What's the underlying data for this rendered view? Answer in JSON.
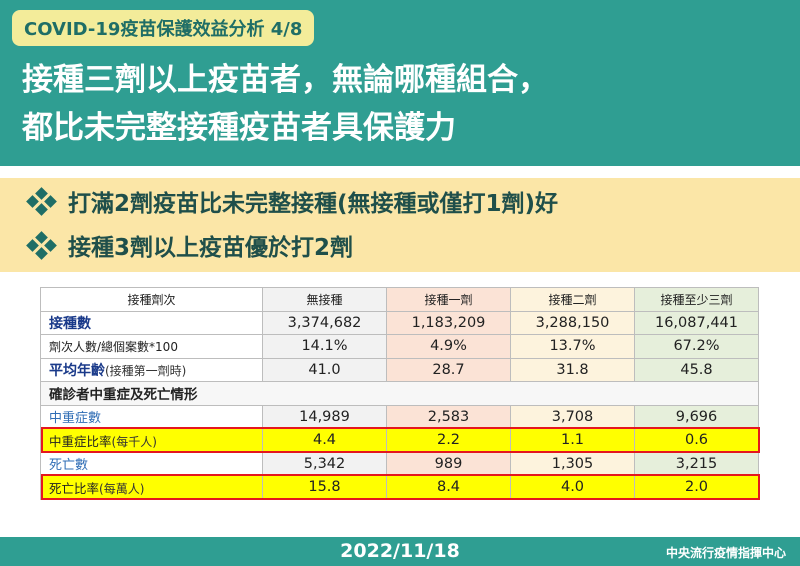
{
  "header": {
    "tag": "COVID-19疫苗保護效益分析 4/8",
    "headline_line1": "接種三劑以上疫苗者，無論哪種組合，",
    "headline_line2": "都比未完整接種疫苗者具保護力"
  },
  "key_points": [
    {
      "text": "打滿2劑疫苗比未完整接種(無接種或僅打1劑)好",
      "icon": "diamond-cluster-icon"
    },
    {
      "text": "接種3劑以上疫苗優於打2劑",
      "icon": "diamond-cluster-icon"
    }
  ],
  "table": {
    "columns": [
      "接種劑次",
      "無接種",
      "接種一劑",
      "接種二劑",
      "接種至少三劑"
    ],
    "rows": {
      "vaccinated_count": {
        "label": "接種數",
        "values": [
          "3,374,682",
          "1,183,209",
          "3,288,150",
          "16,087,441"
        ]
      },
      "case_ratio": {
        "label": "劑次人數/總個案數*100",
        "values": [
          "14.1%",
          "4.9%",
          "13.7%",
          "67.2%"
        ]
      },
      "avg_age": {
        "label": "平均年齡",
        "label_note": "(接種第一劑時)",
        "values": [
          "41.0",
          "28.7",
          "31.8",
          "45.8"
        ]
      },
      "section": {
        "label": "確診者中重症及死亡情形"
      },
      "severe_count": {
        "label": "中重症數",
        "values": [
          "14,989",
          "2,583",
          "3,708",
          "9,696"
        ]
      },
      "severe_rate": {
        "label": "中重症比率",
        "label_note": "(每千人)",
        "values": [
          "4.4",
          "2.2",
          "1.1",
          "0.6"
        ]
      },
      "death_count": {
        "label": "死亡數",
        "values": [
          "5,342",
          "989",
          "1,305",
          "3,215"
        ]
      },
      "death_rate": {
        "label": "死亡比率",
        "label_note": "(每萬人)",
        "values": [
          "15.8",
          "8.4",
          "4.0",
          "2.0"
        ]
      }
    }
  },
  "footer": {
    "date": "2022/11/18",
    "org": "中央流行疫情指揮中心"
  },
  "colors": {
    "teal": "#2f9e92",
    "tag_bg": "#f3ec9a",
    "points_bg": "#fbe6a7",
    "highlight": "#ffff00",
    "highlight_border": "#e5171e",
    "col_none": "#f2f2f2",
    "col_one": "#fbe3d6",
    "col_two": "#fdf3dd",
    "col_three": "#e6efdb"
  }
}
